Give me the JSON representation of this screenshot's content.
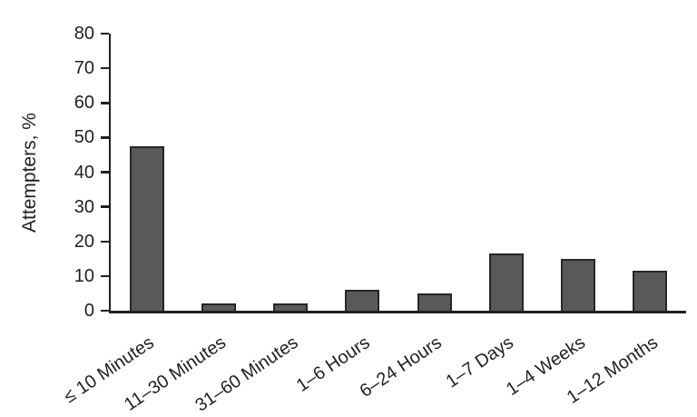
{
  "chart_data": {
    "type": "bar",
    "title": "",
    "categories": [
      "≤ 10 Minutes",
      "11–30 Minutes",
      "31–60 Minutes",
      "1–6 Hours",
      "6–24 Hours",
      "1–7 Days",
      "1–4 Weeks",
      "1–12 Months"
    ],
    "values": [
      47.5,
      2,
      2,
      6,
      5,
      16.5,
      15,
      11.5
    ],
    "xlabel": "",
    "ylabel": "Attempters, %",
    "ylim": [
      0,
      80
    ],
    "yticks": [
      0,
      10,
      20,
      30,
      40,
      50,
      60,
      70,
      80
    ],
    "grid": false,
    "legend": "none",
    "colors": {
      "bar_fill": "#595959",
      "bar_border": "#262626",
      "axis": "#231f20",
      "text": "#231f20",
      "background": "#ffffff"
    }
  }
}
